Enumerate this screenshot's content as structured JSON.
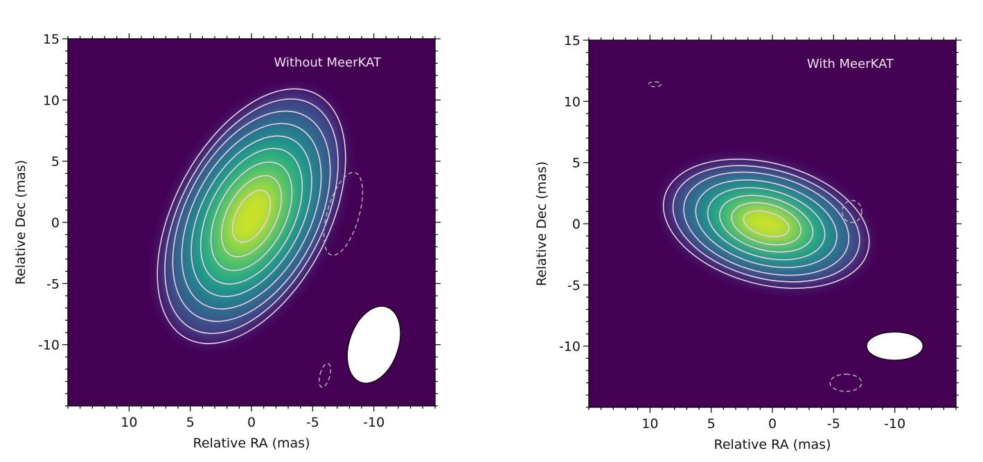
{
  "chart_data": [
    {
      "type": "heatmap",
      "annotation": "Without MeerKAT",
      "xlabel": "Relative RA (mas)",
      "ylabel": "Relative Dec (mas)",
      "xlim": [
        15,
        -15
      ],
      "ylim": [
        -15,
        15
      ],
      "xticks": [
        -10,
        -5,
        0,
        5,
        10
      ],
      "yticks": [
        -10,
        -5,
        0,
        5,
        10,
        15
      ],
      "colormap": "viridis",
      "background_color": "#440154",
      "peak": {
        "x": 0.0,
        "y": 0.5
      },
      "source_major_axis_pa_deg": 152,
      "contour_color": "#e8cfe6",
      "positive_contours": [
        {
          "a": 2.3,
          "b": 1.25
        },
        {
          "a": 3.6,
          "b": 2.0
        },
        {
          "a": 4.8,
          "b": 2.75
        },
        {
          "a": 6.0,
          "b": 3.45
        },
        {
          "a": 7.1,
          "b": 4.1
        },
        {
          "a": 8.2,
          "b": 4.75
        },
        {
          "a": 9.3,
          "b": 5.35
        },
        {
          "a": 10.4,
          "b": 5.8
        },
        {
          "a": 11.3,
          "b": 6.3
        }
      ],
      "negative_contours": [
        {
          "x": -7.5,
          "y": 0.7,
          "a": 3.5,
          "b": 1.3,
          "pa_deg": 164
        },
        {
          "x": -6.0,
          "y": -12.5,
          "a": 1.0,
          "b": 0.4,
          "pa_deg": 165
        }
      ],
      "beam": {
        "x": -10.0,
        "y": -10.0,
        "major": 6.5,
        "minor": 4.0,
        "pa_deg": 161
      }
    },
    {
      "type": "heatmap",
      "annotation": "With MeerKAT",
      "xlabel": "Relative RA (mas)",
      "ylabel": "Relative Dec (mas)",
      "xlim": [
        15,
        -15
      ],
      "ylim": [
        -15,
        15
      ],
      "xticks": [
        -10,
        -5,
        0,
        5,
        10
      ],
      "yticks": [
        -10,
        -5,
        0,
        5,
        10,
        15
      ],
      "colormap": "viridis",
      "background_color": "#440154",
      "peak": {
        "x": 0.5,
        "y": 0.0
      },
      "source_major_axis_pa_deg": 75,
      "contour_color": "#e8cfe6",
      "positive_contours": [
        {
          "a": 1.9,
          "b": 0.95
        },
        {
          "a": 2.9,
          "b": 1.6
        },
        {
          "a": 3.9,
          "b": 2.15
        },
        {
          "a": 4.9,
          "b": 2.75
        },
        {
          "a": 5.9,
          "b": 3.35
        },
        {
          "a": 6.9,
          "b": 3.95
        },
        {
          "a": 7.8,
          "b": 4.45
        },
        {
          "a": 8.6,
          "b": 4.95
        }
      ],
      "negative_contours": [
        {
          "x": -6.5,
          "y": 1.0,
          "a": 0.9,
          "b": 0.8,
          "pa_deg": 0
        },
        {
          "x": -6.0,
          "y": -13.0,
          "a": 1.3,
          "b": 0.7,
          "pa_deg": 90
        },
        {
          "x": 9.6,
          "y": 11.4,
          "a": 0.5,
          "b": 0.2,
          "pa_deg": 90
        }
      ],
      "beam": {
        "x": -10.0,
        "y": -10.0,
        "major": 4.6,
        "minor": 2.3,
        "pa_deg": 90
      }
    }
  ]
}
